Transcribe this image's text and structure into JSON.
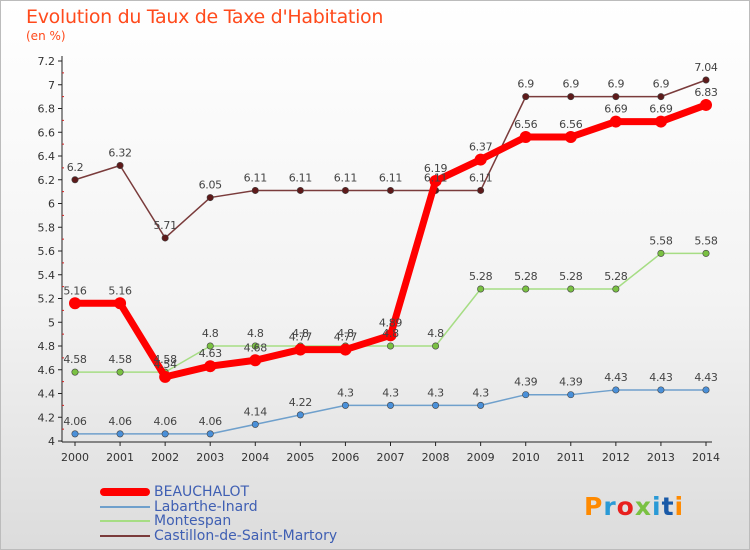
{
  "header": {
    "title": "Evolution du Taux de Taxe d'Habitation",
    "subtitle": "(en %)"
  },
  "logo": {
    "text": "Proxiti",
    "colors": [
      "#ff8a00",
      "#2a9ad6",
      "#e8201e",
      "#7ac142",
      "#2a9ad6",
      "#1a5aa8",
      "#ff8a00"
    ]
  },
  "chart_data": {
    "type": "line",
    "title": "Evolution du Taux de Taxe d'Habitation",
    "ylabel": "(en %)",
    "xlabel": "",
    "x": [
      "2000",
      "2001",
      "2002",
      "2003",
      "2004",
      "2005",
      "2006",
      "2007",
      "2008",
      "2009",
      "2010",
      "2011",
      "2012",
      "2013",
      "2014"
    ],
    "ylim": [
      4,
      7.2
    ],
    "yticks": [
      "4",
      "4.2",
      "4.4",
      "4.6",
      "4.8",
      "5",
      "5.2",
      "5.4",
      "5.6",
      "5.8",
      "6",
      "6.2",
      "6.4",
      "6.6",
      "6.8",
      "7",
      "7.2"
    ],
    "grid": false,
    "legend_position": "bottom-left",
    "series": [
      {
        "name": "BEAUCHALOT",
        "color": "#ff0000",
        "marker": "#ff0000",
        "values": [
          5.16,
          5.16,
          4.54,
          4.63,
          4.68,
          4.77,
          4.77,
          4.89,
          6.19,
          6.37,
          6.56,
          6.56,
          6.69,
          6.69,
          6.83
        ],
        "labels": [
          "5.16",
          "5.16",
          "4.54",
          "4.63",
          "4.68",
          "4.77",
          "4.77",
          "4.89",
          "6.19",
          "6.37",
          "6.56",
          "6.56",
          "6.69",
          "6.69",
          "6.83"
        ]
      },
      {
        "name": "Labarthe-Inard",
        "color": "#6fa0cc",
        "marker": "#4a90d9",
        "values": [
          4.06,
          4.06,
          4.06,
          4.06,
          4.14,
          4.22,
          4.3,
          4.3,
          4.3,
          4.3,
          4.39,
          4.39,
          4.43,
          4.43,
          4.43
        ],
        "labels": [
          "4.06",
          "4.06",
          "4.06",
          "4.06",
          "4.14",
          "4.22",
          "4.3",
          "4.3",
          "4.3",
          "4.3",
          "4.39",
          "4.39",
          "4.43",
          "4.43",
          "4.43"
        ]
      },
      {
        "name": "Montespan",
        "color": "#a6dd84",
        "marker": "#7ac142",
        "values": [
          4.58,
          4.58,
          4.58,
          4.8,
          4.8,
          4.8,
          4.8,
          4.8,
          4.8,
          5.28,
          5.28,
          5.28,
          5.28,
          5.58,
          5.58
        ],
        "labels": [
          "4.58",
          "4.58",
          "4.58",
          "4.8",
          "4.8",
          "4.8",
          "4.8",
          "4.8",
          "4.8",
          "5.28",
          "5.28",
          "5.28",
          "5.28",
          "5.58",
          "5.58"
        ]
      },
      {
        "name": "Castillon-de-Saint-Martory",
        "color": "#7a3b3b",
        "marker": "#5e1a1a",
        "values": [
          6.2,
          6.32,
          5.71,
          6.05,
          6.11,
          6.11,
          6.11,
          6.11,
          6.11,
          6.11,
          6.9,
          6.9,
          6.9,
          6.9,
          7.04
        ],
        "labels": [
          "6.2",
          "6.32",
          "5.71",
          "6.05",
          "6.11",
          "6.11",
          "6.11",
          "6.11",
          "6.11",
          "6.11",
          "6.9",
          "6.9",
          "6.9",
          "6.9",
          "7.04"
        ]
      }
    ]
  }
}
